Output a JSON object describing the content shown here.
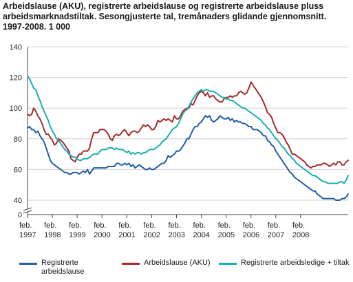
{
  "title": "Arbeidslause (AKU), registrerte arbeidslause og registrerte arbeidslause pluss arbeidsmarknadstiltak. Sesongjusterte tal, tremånaders glidande gjennomsnitt. 1997-2008. 1 000",
  "chart_data": {
    "type": "line",
    "title": "Arbeidslause (AKU), registrerte arbeidslause og registrerte arbeidslause pluss arbeidsmarknadstiltak. Sesongjusterte tal, tremånaders glidande gjennomsnitt. 1997-2008. 1 000",
    "ylim": [
      0,
      140
    ],
    "yticks": [
      0,
      40,
      60,
      80,
      100,
      120,
      140
    ],
    "axis_break": true,
    "grid": true,
    "legend_position": "bottom",
    "x_start": "1997-02",
    "x_step": "month",
    "x_tick_labels": [
      {
        "month": "feb.",
        "year": "1997"
      },
      {
        "month": "feb.",
        "year": "1998"
      },
      {
        "month": "feb.",
        "year": "1999"
      },
      {
        "month": "feb.",
        "year": "2000"
      },
      {
        "month": "feb.",
        "year": "2001"
      },
      {
        "month": "feb.",
        "year": "2002"
      },
      {
        "month": "feb.",
        "year": "2003"
      },
      {
        "month": "feb.",
        "year": "2004"
      },
      {
        "month": "feb.",
        "year": "2005"
      },
      {
        "month": "feb.",
        "year": "2006"
      },
      {
        "month": "feb.",
        "year": "2007"
      },
      {
        "month": "feb.",
        "year": "2008"
      }
    ],
    "series": [
      {
        "name": "Registrerte arbeidslause",
        "color": "#1f5ca8",
        "values": [
          87,
          88,
          86,
          86,
          84,
          85,
          82,
          80,
          78,
          74,
          70,
          66,
          64,
          63,
          62,
          61,
          60,
          59,
          58,
          58,
          57,
          57,
          58,
          58,
          58,
          57,
          58,
          59,
          58,
          60,
          57,
          59,
          61,
          61,
          61,
          61,
          61,
          61,
          61,
          62,
          62,
          62,
          62,
          64,
          64,
          63,
          63,
          64,
          63,
          64,
          62,
          63,
          61,
          62,
          63,
          62,
          61,
          60,
          60,
          61,
          60,
          60,
          61,
          62,
          63,
          64,
          64,
          66,
          69,
          68,
          69,
          70,
          72,
          72,
          73,
          75,
          77,
          80,
          80,
          83,
          86,
          88,
          88,
          90,
          91,
          93,
          95,
          94,
          95,
          92,
          91,
          92,
          93,
          95,
          94,
          93,
          93,
          94,
          92,
          93,
          91,
          92,
          91,
          91,
          90,
          90,
          89,
          88,
          88,
          86,
          86,
          86,
          85,
          84,
          82,
          82,
          79,
          78,
          76,
          75,
          72,
          70,
          68,
          66,
          64,
          62,
          60,
          58,
          57,
          55,
          54,
          53,
          52,
          51,
          50,
          49,
          48,
          47,
          46,
          46,
          44,
          43,
          42,
          41,
          41,
          41,
          41,
          41,
          41,
          40,
          40,
          40,
          41,
          41,
          42,
          44
        ]
      },
      {
        "name": "Arbeidslause (AKU)",
        "color": "#a52a2a",
        "values": [
          96,
          95,
          96,
          100,
          98,
          95,
          93,
          90,
          86,
          83,
          83,
          81,
          79,
          76,
          77,
          80,
          79,
          78,
          76,
          74,
          72,
          67,
          66,
          65,
          68,
          70,
          70,
          72,
          72,
          72,
          74,
          80,
          84,
          84,
          84,
          86,
          86,
          86,
          85,
          83,
          80,
          79,
          82,
          83,
          82,
          83,
          85,
          86,
          84,
          82,
          84,
          85,
          85,
          84,
          85,
          87,
          89,
          88,
          89,
          88,
          86,
          86,
          88,
          92,
          91,
          92,
          93,
          92,
          93,
          92,
          91,
          95,
          93,
          93,
          95,
          98,
          99,
          100,
          100,
          103,
          102,
          105,
          108,
          110,
          111,
          110,
          108,
          110,
          107,
          108,
          108,
          106,
          105,
          104,
          104,
          106,
          107,
          107,
          108,
          107,
          108,
          108,
          110,
          111,
          110,
          109,
          110,
          113,
          117,
          115,
          113,
          111,
          109,
          107,
          104,
          101,
          97,
          96,
          94,
          90,
          87,
          84,
          84,
          83,
          81,
          78,
          76,
          73,
          70,
          70,
          69,
          68,
          67,
          66,
          65,
          63,
          62,
          61,
          62,
          62,
          63,
          63,
          63,
          64,
          64,
          63,
          62,
          63,
          64,
          63,
          65,
          65,
          63,
          63,
          65,
          66
        ]
      },
      {
        "name": "Registrerte arbeidsledige + tiltak",
        "color": "#1aaeb0",
        "values": [
          121,
          119,
          116,
          113,
          112,
          108,
          105,
          101,
          98,
          95,
          92,
          88,
          85,
          83,
          80,
          79,
          77,
          75,
          73,
          72,
          70,
          69,
          68,
          68,
          67,
          66,
          66,
          67,
          67,
          67,
          68,
          69,
          70,
          70,
          70,
          72,
          73,
          73,
          73,
          74,
          74,
          74,
          73,
          74,
          73,
          73,
          73,
          72,
          71,
          72,
          70,
          71,
          70,
          71,
          71,
          70,
          71,
          71,
          72,
          73,
          73,
          73,
          74,
          75,
          76,
          78,
          79,
          80,
          82,
          84,
          86,
          87,
          88,
          90,
          93,
          96,
          98,
          99,
          101,
          104,
          106,
          108,
          110,
          111,
          112,
          111,
          112,
          112,
          111,
          111,
          111,
          110,
          109,
          108,
          107,
          107,
          106,
          106,
          105,
          105,
          104,
          103,
          102,
          101,
          100,
          100,
          99,
          98,
          97,
          96,
          95,
          94,
          93,
          92,
          90,
          89,
          87,
          86,
          84,
          82,
          80,
          79,
          77,
          75,
          74,
          72,
          70,
          69,
          67,
          66,
          64,
          63,
          62,
          61,
          60,
          59,
          58,
          57,
          56,
          56,
          55,
          54,
          53,
          52,
          52,
          51,
          51,
          51,
          51,
          51,
          51,
          52,
          52,
          51,
          53,
          56
        ]
      }
    ]
  }
}
